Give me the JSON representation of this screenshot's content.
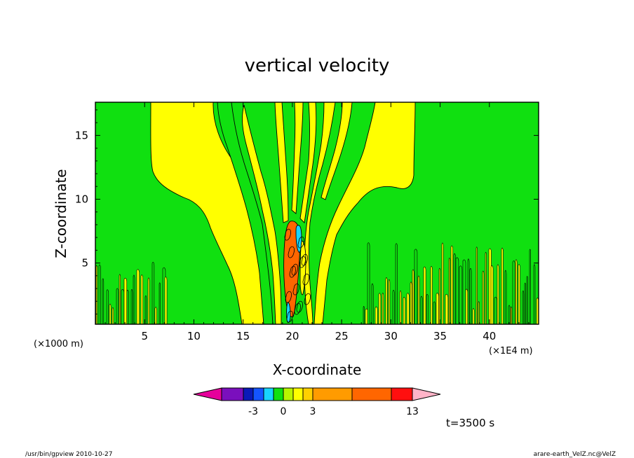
{
  "chart_data": {
    "type": "heatmap",
    "title": "vertical velocity",
    "xlabel": "X-coordinate",
    "ylabel": "Z-coordinate",
    "x_unit_left": "(×1000 m)",
    "x_unit_right": "(×1E4 m)",
    "xlim": [
      0,
      45
    ],
    "ylim": [
      0.2,
      17.6
    ],
    "x_ticks": [
      "5",
      "10",
      "15",
      "20",
      "25",
      "30",
      "35",
      "40"
    ],
    "x_tick_values": [
      5,
      10,
      15,
      20,
      25,
      30,
      35,
      40
    ],
    "y_ticks": [
      "5",
      "10",
      "15"
    ],
    "y_tick_values": [
      5,
      10,
      15
    ],
    "colorbar": {
      "colors": [
        "#e6009b",
        "#7a0fbd",
        "#0a1ab8",
        "#1455ff",
        "#18d4ff",
        "#10e010",
        "#b8f500",
        "#ffff00",
        "#ffd000",
        "#ff9b00",
        "#ff6600",
        "#ff0f0f",
        "#ff8080",
        "#ffb4c8"
      ],
      "tick_labels": [
        "-3",
        "0",
        "3",
        "13"
      ],
      "tick_levels": [
        -3,
        0,
        3,
        13
      ]
    },
    "time_label": "t=3500 s",
    "background_color": "#10e010",
    "positive_color": "#ffff00"
  },
  "footer": {
    "left": "/usr/bin/gpview   2010-10-27",
    "right": "arare-earth_VelZ.nc@VelZ"
  }
}
